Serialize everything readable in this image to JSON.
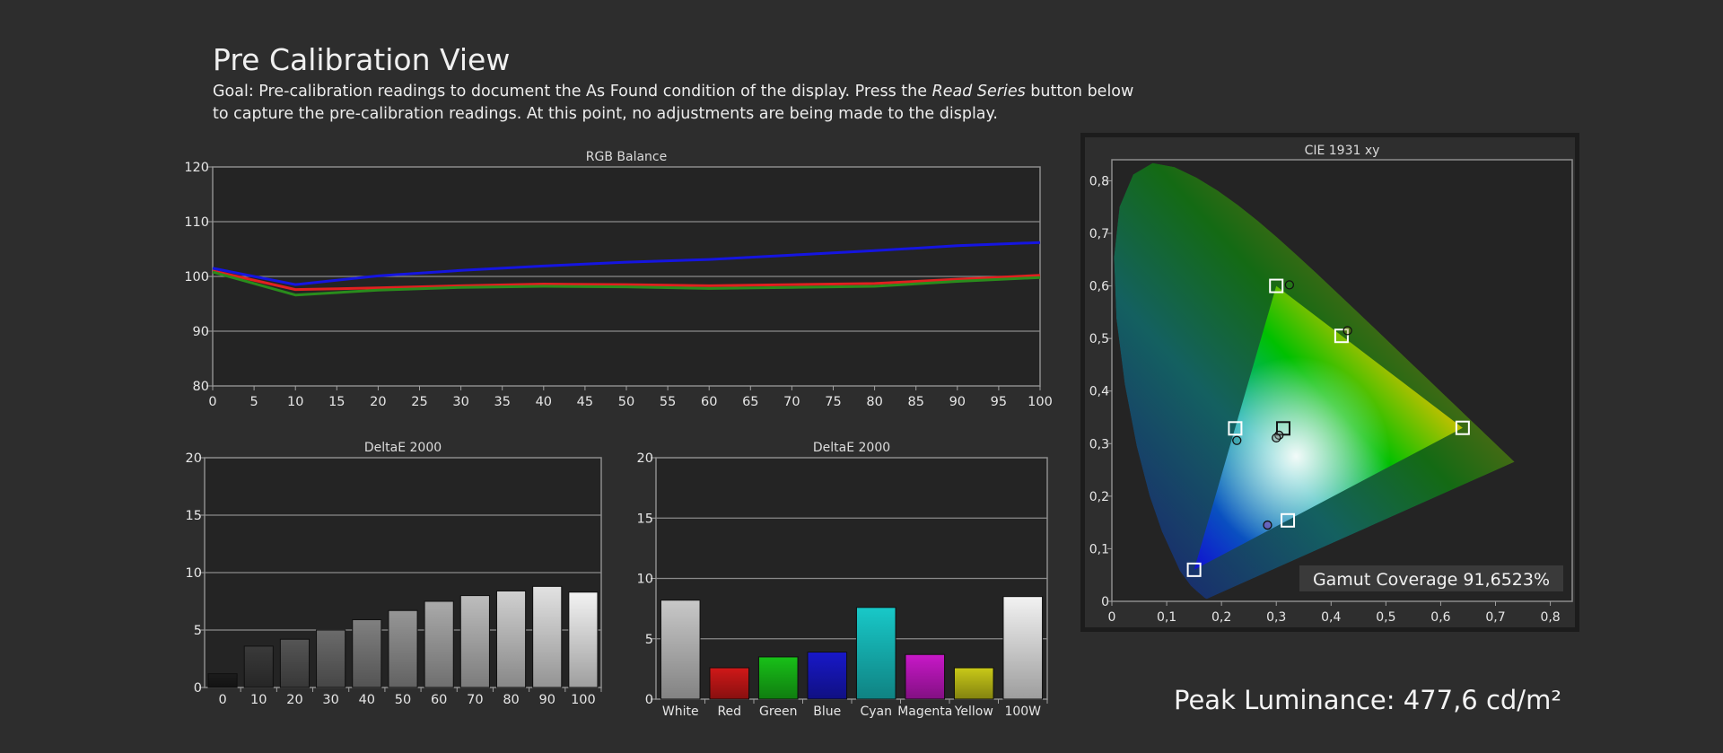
{
  "page": {
    "title": "Pre Calibration View",
    "goal_prefix": "Goal: Pre-calibration readings to document the As Found condition of the display. Press the ",
    "goal_emphasis": "Read Series",
    "goal_suffix": " button below to capture the pre-calibration readings. At this point, no adjustments are being made to the display.",
    "peak_luminance": "Peak Luminance: 477,6 cd/m²",
    "gamut_coverage": "Gamut Coverage 91,6523%"
  },
  "chart_data": [
    {
      "id": "rgb",
      "type": "line",
      "title": "RGB Balance",
      "x": [
        0,
        10,
        20,
        30,
        40,
        50,
        60,
        70,
        80,
        90,
        100
      ],
      "x_ticks": [
        "0",
        "5",
        "10",
        "15",
        "20",
        "25",
        "30",
        "35",
        "40",
        "45",
        "50",
        "55",
        "60",
        "65",
        "70",
        "75",
        "80",
        "85",
        "90",
        "95",
        "100"
      ],
      "y_ticks": [
        "120",
        "110",
        "100",
        "90",
        "80"
      ],
      "xlim": [
        0,
        100
      ],
      "ylim": [
        80,
        120
      ],
      "grid": true,
      "series": [
        {
          "color": "#e22020",
          "values": [
            101.0,
            97.6,
            97.9,
            98.3,
            98.6,
            98.5,
            98.3,
            98.5,
            98.7,
            99.5,
            100.2
          ]
        },
        {
          "color": "#2a8c1c",
          "values": [
            100.8,
            96.6,
            97.5,
            98.0,
            98.2,
            98.1,
            97.8,
            98.0,
            98.2,
            99.1,
            99.8
          ]
        },
        {
          "color": "#1515e0",
          "values": [
            101.5,
            98.5,
            100.1,
            101.1,
            101.9,
            102.6,
            103.1,
            103.9,
            104.7,
            105.6,
            106.2
          ]
        }
      ]
    },
    {
      "id": "de_gray",
      "type": "bar",
      "title": "DeltaE 2000",
      "categories": [
        "0",
        "10",
        "20",
        "30",
        "40",
        "50",
        "60",
        "70",
        "80",
        "90",
        "100"
      ],
      "values": [
        1.2,
        3.6,
        4.2,
        5.0,
        5.9,
        6.7,
        7.5,
        8.0,
        8.4,
        8.8,
        8.3
      ],
      "colors": [
        "#1c1c1c",
        "#3a3a3a",
        "#555555",
        "#6b6b6b",
        "#808080",
        "#969696",
        "#aaaaaa",
        "#bdbdbd",
        "#d0d0d0",
        "#e2e2e2",
        "#f3f3f3"
      ],
      "y_ticks": [
        "20",
        "15",
        "10",
        "5",
        "0"
      ],
      "ylim": [
        0,
        20
      ],
      "grid": true
    },
    {
      "id": "de_color",
      "type": "bar",
      "title": "DeltaE 2000",
      "categories": [
        "White",
        "Red",
        "Green",
        "Blue",
        "Cyan",
        "Magenta",
        "Yellow",
        "100W"
      ],
      "values": [
        8.2,
        2.6,
        3.5,
        3.9,
        7.6,
        3.7,
        2.6,
        8.5
      ],
      "colors": [
        "#c8c8c8",
        "#d01818",
        "#18c018",
        "#1818c8",
        "#18c8c8",
        "#c818c8",
        "#c8c818",
        "#f2f2f2"
      ],
      "y_ticks": [
        "20",
        "15",
        "10",
        "5",
        "0"
      ],
      "ylim": [
        0,
        20
      ],
      "grid": true
    },
    {
      "id": "cie",
      "type": "scatter",
      "title": "CIE 1931 xy",
      "x_ticks": [
        "0",
        "0,1",
        "0,2",
        "0,3",
        "0,4",
        "0,5",
        "0,6",
        "0,7",
        "0,8"
      ],
      "y_ticks": [
        "0,8",
        "0,7",
        "0,6",
        "0,5",
        "0,4",
        "0,3",
        "0,2",
        "0,1",
        "0"
      ],
      "xlim": [
        0,
        0.84
      ],
      "ylim": [
        0,
        0.84
      ],
      "grid": false,
      "locus": [
        [
          0.1741,
          0.005
        ],
        [
          0.1738,
          0.0049
        ],
        [
          0.1733,
          0.0048
        ],
        [
          0.1726,
          0.0048
        ],
        [
          0.1714,
          0.0051
        ],
        [
          0.1689,
          0.0069
        ],
        [
          0.1644,
          0.0109
        ],
        [
          0.1566,
          0.0177
        ],
        [
          0.144,
          0.0297
        ],
        [
          0.1241,
          0.0578
        ],
        [
          0.0913,
          0.1327
        ],
        [
          0.0687,
          0.2007
        ],
        [
          0.0454,
          0.295
        ],
        [
          0.0235,
          0.4127
        ],
        [
          0.0082,
          0.5384
        ],
        [
          0.0039,
          0.6548
        ],
        [
          0.0139,
          0.7502
        ],
        [
          0.0389,
          0.812
        ],
        [
          0.0743,
          0.8338
        ],
        [
          0.1142,
          0.8262
        ],
        [
          0.1547,
          0.8059
        ],
        [
          0.1929,
          0.7816
        ],
        [
          0.2296,
          0.7543
        ],
        [
          0.2658,
          0.7243
        ],
        [
          0.3016,
          0.6923
        ],
        [
          0.3373,
          0.6589
        ],
        [
          0.3731,
          0.6245
        ],
        [
          0.4087,
          0.5896
        ],
        [
          0.4441,
          0.5547
        ],
        [
          0.4788,
          0.5202
        ],
        [
          0.5125,
          0.4866
        ],
        [
          0.5448,
          0.4544
        ],
        [
          0.5752,
          0.4242
        ],
        [
          0.6029,
          0.3965
        ],
        [
          0.627,
          0.3725
        ],
        [
          0.6482,
          0.3514
        ],
        [
          0.6658,
          0.334
        ],
        [
          0.6801,
          0.3197
        ],
        [
          0.6915,
          0.3083
        ],
        [
          0.7006,
          0.2993
        ],
        [
          0.7079,
          0.292
        ],
        [
          0.714,
          0.2859
        ],
        [
          0.719,
          0.2809
        ],
        [
          0.723,
          0.277
        ],
        [
          0.726,
          0.274
        ],
        [
          0.7283,
          0.2717
        ],
        [
          0.73,
          0.27
        ],
        [
          0.7347,
          0.2653
        ]
      ],
      "target_gamut": [
        [
          0.64,
          0.33
        ],
        [
          0.3,
          0.6
        ],
        [
          0.15,
          0.06
        ]
      ],
      "targets": [
        {
          "name": "red",
          "x": 0.64,
          "y": 0.33
        },
        {
          "name": "green",
          "x": 0.3,
          "y": 0.6
        },
        {
          "name": "blue",
          "x": 0.15,
          "y": 0.06
        },
        {
          "name": "cyan",
          "x": 0.225,
          "y": 0.329
        },
        {
          "name": "magenta",
          "x": 0.321,
          "y": 0.154
        },
        {
          "name": "yellow",
          "x": 0.419,
          "y": 0.505
        },
        {
          "name": "white",
          "x": 0.3127,
          "y": 0.329
        }
      ],
      "measured": [
        {
          "name": "green",
          "x": 0.324,
          "y": 0.602,
          "color": "#2a8c1c"
        },
        {
          "name": "yellow",
          "x": 0.43,
          "y": 0.515,
          "color": "#8a8a10"
        },
        {
          "name": "cyan",
          "x": 0.228,
          "y": 0.306,
          "color": "#1a8a8a"
        },
        {
          "name": "white",
          "x": 0.305,
          "y": 0.316,
          "color": "#888888"
        },
        {
          "name": "white2",
          "x": 0.3,
          "y": 0.311,
          "color": "#888888"
        },
        {
          "name": "magenta",
          "x": 0.284,
          "y": 0.145,
          "color": "#aa10aa"
        }
      ]
    }
  ]
}
